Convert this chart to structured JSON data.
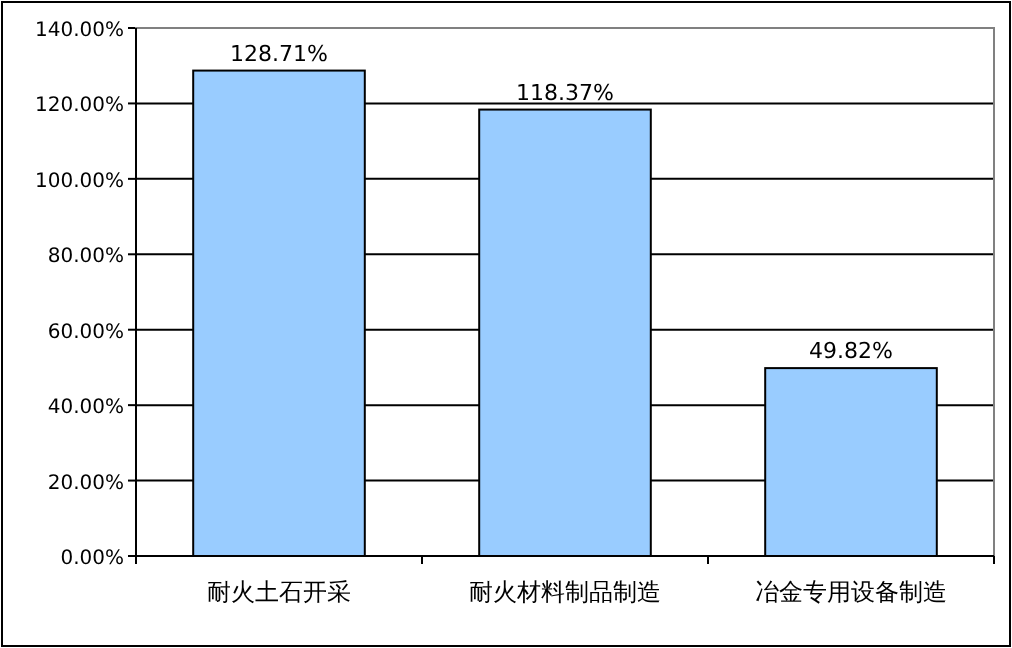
{
  "chart_data": {
    "type": "bar",
    "categories": [
      "耐火土石开采",
      "耐火材料制品制造",
      "冶金专用设备制造"
    ],
    "values": [
      128.71,
      118.37,
      49.82
    ],
    "value_labels": [
      "128.71%",
      "118.37%",
      "49.82%"
    ],
    "color": "#99ccff",
    "ylim": [
      0,
      140
    ],
    "yticks": [
      {
        "value": 0,
        "label": "0.00%"
      },
      {
        "value": 20,
        "label": "20.00%"
      },
      {
        "value": 40,
        "label": "40.00%"
      },
      {
        "value": 60,
        "label": "60.00%"
      },
      {
        "value": 80,
        "label": "80.00%"
      },
      {
        "value": 100,
        "label": "100.00%"
      },
      {
        "value": 120,
        "label": "120.00%"
      },
      {
        "value": 140,
        "label": "140.00%"
      }
    ],
    "grid": "y"
  }
}
